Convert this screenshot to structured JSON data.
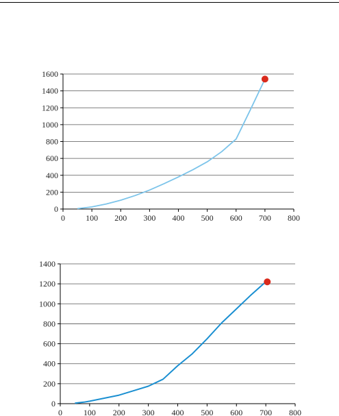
{
  "chart_data": [
    {
      "type": "line",
      "title": "",
      "xlabel": "",
      "ylabel": "",
      "xlim": [
        0,
        800
      ],
      "ylim": [
        0,
        1600
      ],
      "xticks": [
        0,
        100,
        200,
        300,
        400,
        500,
        600,
        700,
        800
      ],
      "yticks": [
        0,
        200,
        400,
        600,
        800,
        1000,
        1200,
        1400,
        1600
      ],
      "grid": "horizontal",
      "line_color": "#7cc4ea",
      "marker_color": "#d92a1c",
      "series": [
        {
          "x": [
            50,
            100,
            150,
            200,
            250,
            300,
            350,
            400,
            450,
            500,
            550,
            600,
            650,
            700
          ],
          "y": [
            5,
            25,
            60,
            105,
            160,
            225,
            300,
            380,
            465,
            560,
            680,
            830,
            1180,
            1540
          ]
        }
      ],
      "highlight_point": {
        "x": 700,
        "y": 1540
      }
    },
    {
      "type": "line",
      "title": "",
      "xlabel": "",
      "ylabel": "",
      "xlim": [
        0,
        800
      ],
      "ylim": [
        0,
        1400
      ],
      "xticks": [
        0,
        100,
        200,
        300,
        400,
        500,
        600,
        700,
        800
      ],
      "yticks": [
        0,
        200,
        400,
        600,
        800,
        1000,
        1200,
        1400
      ],
      "grid": "horizontal",
      "line_color": "#1a8fd1",
      "marker_color": "#d92a1c",
      "series": [
        {
          "x": [
            50,
            80,
            100,
            150,
            200,
            250,
            300,
            350,
            400,
            450,
            500,
            550,
            600,
            650,
            700
          ],
          "y": [
            5,
            15,
            25,
            55,
            85,
            130,
            175,
            245,
            380,
            500,
            650,
            810,
            950,
            1090,
            1220
          ]
        }
      ],
      "highlight_point": {
        "x": 705,
        "y": 1220
      }
    }
  ]
}
